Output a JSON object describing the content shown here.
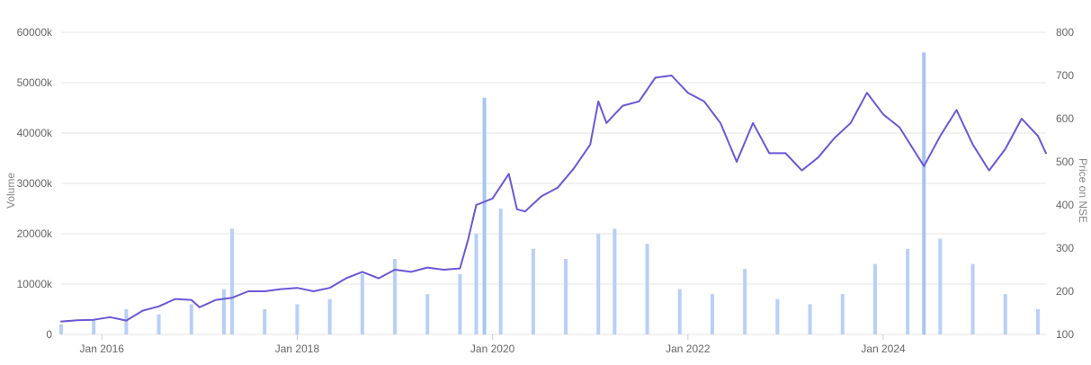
{
  "chart_data": {
    "type": "bar",
    "title": "",
    "left_axis": {
      "label": "Volume",
      "ticks": [
        "0",
        "10000k",
        "20000k",
        "30000k",
        "40000k",
        "50000k",
        "60000k"
      ],
      "range": [
        0,
        60000
      ]
    },
    "right_axis": {
      "label": "Price on NSE",
      "ticks": [
        "100",
        "200",
        "300",
        "400",
        "500",
        "600",
        "700",
        "800"
      ],
      "range": [
        100,
        800
      ]
    },
    "x_axis": {
      "start": "2015-08",
      "end": "2025-09",
      "ticks": [
        {
          "date": "2016-01",
          "label": "Jan 2016"
        },
        {
          "date": "2018-01",
          "label": "Jan 2018"
        },
        {
          "date": "2020-01",
          "label": "Jan 2020"
        },
        {
          "date": "2022-01",
          "label": "Jan 2022"
        },
        {
          "date": "2024-01",
          "label": "Jan 2024"
        }
      ]
    },
    "grid": true,
    "colors": {
      "price": "#6b57d8",
      "volume": "#b9cff7",
      "grid": "#e6e6e6",
      "tick_text": "#666666"
    },
    "series": [
      {
        "name": "Price on NSE",
        "kind": "line",
        "axis": "right",
        "points": [
          [
            "2015-08",
            130
          ],
          [
            "2015-10",
            133
          ],
          [
            "2015-12",
            134
          ],
          [
            "2016-02",
            140
          ],
          [
            "2016-04",
            132
          ],
          [
            "2016-06",
            155
          ],
          [
            "2016-08",
            165
          ],
          [
            "2016-10",
            182
          ],
          [
            "2016-12",
            180
          ],
          [
            "2017-01",
            163
          ],
          [
            "2017-03",
            180
          ],
          [
            "2017-05",
            185
          ],
          [
            "2017-07",
            200
          ],
          [
            "2017-09",
            200
          ],
          [
            "2017-11",
            205
          ],
          [
            "2018-01",
            208
          ],
          [
            "2018-03",
            200
          ],
          [
            "2018-05",
            208
          ],
          [
            "2018-07",
            230
          ],
          [
            "2018-09",
            245
          ],
          [
            "2018-11",
            230
          ],
          [
            "2019-01",
            250
          ],
          [
            "2019-03",
            245
          ],
          [
            "2019-05",
            255
          ],
          [
            "2019-07",
            250
          ],
          [
            "2019-09",
            253
          ],
          [
            "2019-10",
            320
          ],
          [
            "2019-11",
            400
          ],
          [
            "2020-01",
            415
          ],
          [
            "2020-03",
            472
          ],
          [
            "2020-04",
            390
          ],
          [
            "2020-05",
            385
          ],
          [
            "2020-07",
            420
          ],
          [
            "2020-09",
            440
          ],
          [
            "2020-11",
            485
          ],
          [
            "2021-01",
            540
          ],
          [
            "2021-02",
            640
          ],
          [
            "2021-03",
            590
          ],
          [
            "2021-05",
            630
          ],
          [
            "2021-07",
            640
          ],
          [
            "2021-09",
            695
          ],
          [
            "2021-11",
            700
          ],
          [
            "2022-01",
            660
          ],
          [
            "2022-03",
            640
          ],
          [
            "2022-05",
            590
          ],
          [
            "2022-07",
            500
          ],
          [
            "2022-09",
            590
          ],
          [
            "2022-11",
            520
          ],
          [
            "2023-01",
            520
          ],
          [
            "2023-03",
            480
          ],
          [
            "2023-05",
            510
          ],
          [
            "2023-07",
            555
          ],
          [
            "2023-09",
            590
          ],
          [
            "2023-11",
            660
          ],
          [
            "2024-01",
            610
          ],
          [
            "2024-03",
            580
          ],
          [
            "2024-05",
            520
          ],
          [
            "2024-06",
            490
          ],
          [
            "2024-08",
            560
          ],
          [
            "2024-10",
            620
          ],
          [
            "2024-12",
            540
          ],
          [
            "2025-02",
            480
          ],
          [
            "2025-04",
            530
          ],
          [
            "2025-06",
            600
          ],
          [
            "2025-08",
            560
          ],
          [
            "2025-09",
            520
          ]
        ]
      },
      {
        "name": "Volume",
        "kind": "bar",
        "axis": "left",
        "points": [
          [
            "2015-08",
            2000
          ],
          [
            "2015-12",
            3000
          ],
          [
            "2016-04",
            5000
          ],
          [
            "2016-08",
            4000
          ],
          [
            "2016-12",
            6000
          ],
          [
            "2017-04",
            9000
          ],
          [
            "2017-05",
            21000
          ],
          [
            "2017-09",
            5000
          ],
          [
            "2018-01",
            6000
          ],
          [
            "2018-05",
            7000
          ],
          [
            "2018-09",
            12000
          ],
          [
            "2019-01",
            15000
          ],
          [
            "2019-05",
            8000
          ],
          [
            "2019-09",
            12000
          ],
          [
            "2019-11",
            20000
          ],
          [
            "2019-12",
            47000
          ],
          [
            "2020-02",
            25000
          ],
          [
            "2020-06",
            17000
          ],
          [
            "2020-10",
            15000
          ],
          [
            "2021-02",
            20000
          ],
          [
            "2021-04",
            21000
          ],
          [
            "2021-08",
            18000
          ],
          [
            "2021-12",
            9000
          ],
          [
            "2022-04",
            8000
          ],
          [
            "2022-08",
            13000
          ],
          [
            "2022-12",
            7000
          ],
          [
            "2023-04",
            6000
          ],
          [
            "2023-08",
            8000
          ],
          [
            "2023-12",
            14000
          ],
          [
            "2024-04",
            17000
          ],
          [
            "2024-06",
            56000
          ],
          [
            "2024-08",
            19000
          ],
          [
            "2024-12",
            14000
          ],
          [
            "2025-04",
            8000
          ],
          [
            "2025-08",
            5000
          ]
        ]
      }
    ]
  }
}
